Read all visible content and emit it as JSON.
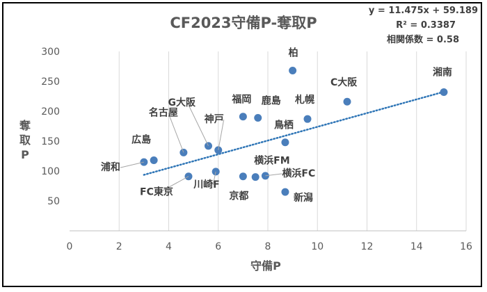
{
  "chart_data": {
    "type": "scatter",
    "title": "CF2023守備P-奪取P",
    "xlabel": "守備P",
    "ylabel": "奪取P",
    "xlim": [
      0,
      16
    ],
    "ylim": [
      0,
      300
    ],
    "x_ticks": [
      "0",
      "2",
      "4",
      "6",
      "8",
      "10",
      "12",
      "14",
      "16"
    ],
    "y_ticks": [
      "50",
      "100",
      "150",
      "200",
      "250",
      "300"
    ],
    "grid": "vertical",
    "legend": "none",
    "point_color": "#4a7ebb",
    "trendline": {
      "type": "linear",
      "slope": 11.475,
      "intercept": 59.189,
      "color": "#2e75b6",
      "x_range": [
        3,
        15.1
      ]
    },
    "stats": [
      "y = 11.475x + 59.189",
      "R² = 0.3387",
      "相関係数 = 0.58"
    ],
    "points": [
      {
        "label": "浦和",
        "x": 3.0,
        "y": 115
      },
      {
        "label": "広島",
        "x": 3.4,
        "y": 118
      },
      {
        "label": "名古屋",
        "x": 4.6,
        "y": 131
      },
      {
        "label": "FC東京",
        "x": 4.8,
        "y": 91
      },
      {
        "label": "G大阪",
        "x": 5.6,
        "y": 142
      },
      {
        "label": "神戸",
        "x": 6.0,
        "y": 135
      },
      {
        "label": "川崎F",
        "x": 5.9,
        "y": 99
      },
      {
        "label": "京都",
        "x": 7.0,
        "y": 91
      },
      {
        "label": "福岡",
        "x": 7.0,
        "y": 191
      },
      {
        "label": "鹿島",
        "x": 7.6,
        "y": 189
      },
      {
        "label": "横浜FM",
        "x": 7.5,
        "y": 90
      },
      {
        "label": "横浜FC",
        "x": 7.9,
        "y": 92
      },
      {
        "label": "新潟",
        "x": 8.7,
        "y": 65
      },
      {
        "label": "鳥栖",
        "x": 8.7,
        "y": 148
      },
      {
        "label": "柏",
        "x": 9.0,
        "y": 268
      },
      {
        "label": "札幌",
        "x": 9.6,
        "y": 187
      },
      {
        "label": "C大阪",
        "x": 11.2,
        "y": 216
      },
      {
        "label": "湘南",
        "x": 15.1,
        "y": 232
      }
    ]
  }
}
